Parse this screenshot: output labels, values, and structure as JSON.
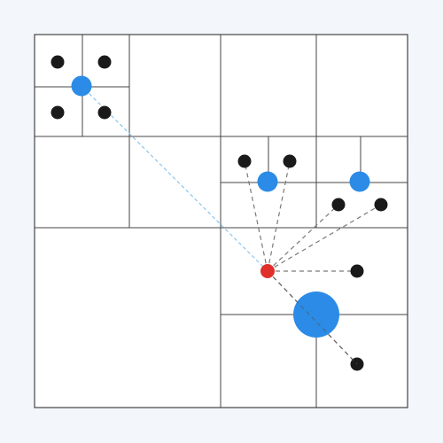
{
  "diagram": {
    "kind": "quadtree-nearest-neighbor",
    "colors": {
      "background": "#f3f7fb",
      "cell_fill": "#ffffff",
      "grid": "#444444",
      "point": "#1a1a1a",
      "centroid": "#2b8be6",
      "query": "#e0302b",
      "far_link": "#87c6f0",
      "near_link": "#7a7a7a"
    },
    "icons": {
      "query": "query-point-icon",
      "point": "data-point-icon",
      "centroid": "centroid-node-icon"
    }
  }
}
